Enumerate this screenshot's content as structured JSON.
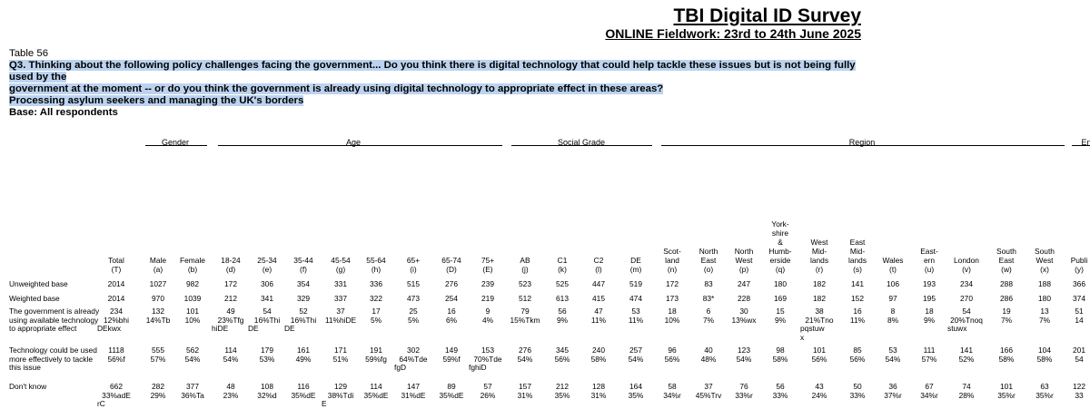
{
  "survey": {
    "title": "TBI Digital ID Survey",
    "fieldwork": "ONLINE Fieldwork: 23rd to 24th June 2025"
  },
  "table": {
    "number": "Table 56",
    "question_line1": "Q3. Thinking about the following policy challenges facing the government... Do you think there is digital technology that could help tackle these issues but is not being fully used by the",
    "question_line2": "government at the moment -- or do you think the government is already using digital technology to appropriate effect in these areas?",
    "topic": "Processing asylum seekers and managing the UK's borders",
    "base": "Base: All respondents"
  },
  "groups": [
    {
      "label": "Gender"
    },
    {
      "label": "Age"
    },
    {
      "label": "Social Grade"
    },
    {
      "label": "Region"
    },
    {
      "label": "En"
    }
  ],
  "columns": [
    {
      "label": "Total",
      "code": "(T)"
    },
    {
      "label": "Male",
      "code": "(a)"
    },
    {
      "label": "Female",
      "code": "(b)"
    },
    {
      "label": "18-24",
      "code": "(d)"
    },
    {
      "label": "25-34",
      "code": "(e)"
    },
    {
      "label": "35-44",
      "code": "(f)"
    },
    {
      "label": "45-54",
      "code": "(g)"
    },
    {
      "label": "55-64",
      "code": "(h)"
    },
    {
      "label": "65+",
      "code": "(i)"
    },
    {
      "label": "65-74",
      "code": "(D)"
    },
    {
      "label": "75+",
      "code": "(E)"
    },
    {
      "label": "AB",
      "code": "(j)"
    },
    {
      "label": "C1",
      "code": "(k)"
    },
    {
      "label": "C2",
      "code": "(l)"
    },
    {
      "label": "DE",
      "code": "(m)"
    },
    {
      "label": "Scot-\nland",
      "code": "(n)"
    },
    {
      "label": "North\nEast",
      "code": "(o)"
    },
    {
      "label": "North\nWest",
      "code": "(p)"
    },
    {
      "label": "York-\nshire\n&\nHumb-\nerside",
      "code": "(q)"
    },
    {
      "label": "West\nMid-\nlands",
      "code": "(r)"
    },
    {
      "label": "East\nMid-\nlands",
      "code": "(s)"
    },
    {
      "label": "Wales",
      "code": "(t)"
    },
    {
      "label": "East-\nern",
      "code": "(u)"
    },
    {
      "label": "London",
      "code": "(v)"
    },
    {
      "label": "South\nEast",
      "code": "(w)"
    },
    {
      "label": "South\nWest",
      "code": "(x)"
    },
    {
      "label": "Publi",
      "code": "(y)"
    }
  ],
  "rows": [
    {
      "label": "Unweighted base",
      "cells": [
        {
          "n": "2014"
        },
        {
          "n": "1027"
        },
        {
          "n": "982"
        },
        {
          "n": "172"
        },
        {
          "n": "306"
        },
        {
          "n": "354"
        },
        {
          "n": "331"
        },
        {
          "n": "336"
        },
        {
          "n": "515"
        },
        {
          "n": "276"
        },
        {
          "n": "239"
        },
        {
          "n": "523"
        },
        {
          "n": "525"
        },
        {
          "n": "447"
        },
        {
          "n": "519"
        },
        {
          "n": "172"
        },
        {
          "n": "83"
        },
        {
          "n": "247"
        },
        {
          "n": "180"
        },
        {
          "n": "182"
        },
        {
          "n": "141"
        },
        {
          "n": "106"
        },
        {
          "n": "193"
        },
        {
          "n": "234"
        },
        {
          "n": "288"
        },
        {
          "n": "188"
        },
        {
          "n": "366"
        }
      ]
    },
    {
      "label": "Weighted base",
      "cells": [
        {
          "n": "2014"
        },
        {
          "n": "970"
        },
        {
          "n": "1039"
        },
        {
          "n": "212"
        },
        {
          "n": "341"
        },
        {
          "n": "329"
        },
        {
          "n": "337"
        },
        {
          "n": "322"
        },
        {
          "n": "473"
        },
        {
          "n": "254"
        },
        {
          "n": "219"
        },
        {
          "n": "512"
        },
        {
          "n": "613"
        },
        {
          "n": "415"
        },
        {
          "n": "474"
        },
        {
          "n": "173"
        },
        {
          "n": "83*"
        },
        {
          "n": "228"
        },
        {
          "n": "169"
        },
        {
          "n": "182"
        },
        {
          "n": "152"
        },
        {
          "n": "97"
        },
        {
          "n": "195"
        },
        {
          "n": "270"
        },
        {
          "n": "286"
        },
        {
          "n": "180"
        },
        {
          "n": "374"
        }
      ]
    },
    {
      "label": "The government is already using available technology to appropriate effect",
      "cells": [
        {
          "n": "234",
          "p": "12%bhi",
          "x": "DEkwx"
        },
        {
          "n": "132",
          "p": "14%Tb"
        },
        {
          "n": "101",
          "p": "10%"
        },
        {
          "n": "49",
          "p": "23%Tfg",
          "x": "hiDE"
        },
        {
          "n": "54",
          "p": "16%Thi",
          "x": "DE"
        },
        {
          "n": "52",
          "p": "16%Thi",
          "x": "DE"
        },
        {
          "n": "37",
          "p": "11%hiDE"
        },
        {
          "n": "17",
          "p": "5%"
        },
        {
          "n": "25",
          "p": "5%"
        },
        {
          "n": "16",
          "p": "6%"
        },
        {
          "n": "9",
          "p": "4%"
        },
        {
          "n": "79",
          "p": "15%Tkm"
        },
        {
          "n": "56",
          "p": "9%"
        },
        {
          "n": "47",
          "p": "11%"
        },
        {
          "n": "53",
          "p": "11%"
        },
        {
          "n": "18",
          "p": "10%"
        },
        {
          "n": "6",
          "p": "7%"
        },
        {
          "n": "30",
          "p": "13%wx"
        },
        {
          "n": "15",
          "p": "9%"
        },
        {
          "n": "38",
          "p": "21%Tno",
          "x": "pqstuw",
          "x2": "x"
        },
        {
          "n": "16",
          "p": "11%"
        },
        {
          "n": "8",
          "p": "8%"
        },
        {
          "n": "18",
          "p": "9%"
        },
        {
          "n": "54",
          "p": "20%Tnoq",
          "x": "stuwx"
        },
        {
          "n": "19",
          "p": "7%"
        },
        {
          "n": "13",
          "p": "7%"
        },
        {
          "n": "51",
          "p": "14"
        }
      ]
    },
    {
      "label": "Technology could be used more effectively to tackle this issue",
      "cells": [
        {
          "n": "1118",
          "p": "56%f"
        },
        {
          "n": "555",
          "p": "57%"
        },
        {
          "n": "562",
          "p": "54%"
        },
        {
          "n": "114",
          "p": "54%"
        },
        {
          "n": "179",
          "p": "53%"
        },
        {
          "n": "161",
          "p": "49%"
        },
        {
          "n": "171",
          "p": "51%"
        },
        {
          "n": "191",
          "p": "59%fg"
        },
        {
          "n": "302",
          "p": "64%Tde",
          "x": "fgD"
        },
        {
          "n": "149",
          "p": "59%f"
        },
        {
          "n": "153",
          "p": "70%Tde",
          "x": "fghiD"
        },
        {
          "n": "276",
          "p": "54%"
        },
        {
          "n": "345",
          "p": "56%"
        },
        {
          "n": "240",
          "p": "58%"
        },
        {
          "n": "257",
          "p": "54%"
        },
        {
          "n": "96",
          "p": "56%"
        },
        {
          "n": "40",
          "p": "48%"
        },
        {
          "n": "123",
          "p": "54%"
        },
        {
          "n": "98",
          "p": "58%"
        },
        {
          "n": "101",
          "p": "56%"
        },
        {
          "n": "85",
          "p": "56%"
        },
        {
          "n": "53",
          "p": "54%"
        },
        {
          "n": "111",
          "p": "57%"
        },
        {
          "n": "141",
          "p": "52%"
        },
        {
          "n": "166",
          "p": "58%"
        },
        {
          "n": "104",
          "p": "58%"
        },
        {
          "n": "201",
          "p": "54"
        }
      ]
    },
    {
      "label": "Don't know",
      "cells": [
        {
          "n": "662",
          "p": "33%adE",
          "x": "rC"
        },
        {
          "n": "282",
          "p": "29%"
        },
        {
          "n": "377",
          "p": "36%Ta"
        },
        {
          "n": "48",
          "p": "23%"
        },
        {
          "n": "108",
          "p": "32%d"
        },
        {
          "n": "116",
          "p": "35%dE"
        },
        {
          "n": "129",
          "p": "38%Tdi",
          "x": "E"
        },
        {
          "n": "114",
          "p": "35%dE"
        },
        {
          "n": "147",
          "p": "31%dE"
        },
        {
          "n": "89",
          "p": "35%dE"
        },
        {
          "n": "57",
          "p": "26%"
        },
        {
          "n": "157",
          "p": "31%"
        },
        {
          "n": "212",
          "p": "35%"
        },
        {
          "n": "128",
          "p": "31%"
        },
        {
          "n": "164",
          "p": "35%"
        },
        {
          "n": "58",
          "p": "34%r"
        },
        {
          "n": "37",
          "p": "45%Trv"
        },
        {
          "n": "76",
          "p": "33%r"
        },
        {
          "n": "56",
          "p": "33%"
        },
        {
          "n": "43",
          "p": "24%"
        },
        {
          "n": "50",
          "p": "33%"
        },
        {
          "n": "36",
          "p": "37%r"
        },
        {
          "n": "67",
          "p": "34%r"
        },
        {
          "n": "74",
          "p": "28%"
        },
        {
          "n": "101",
          "p": "35%r"
        },
        {
          "n": "63",
          "p": "35%r"
        },
        {
          "n": "122",
          "p": "33"
        }
      ]
    }
  ]
}
